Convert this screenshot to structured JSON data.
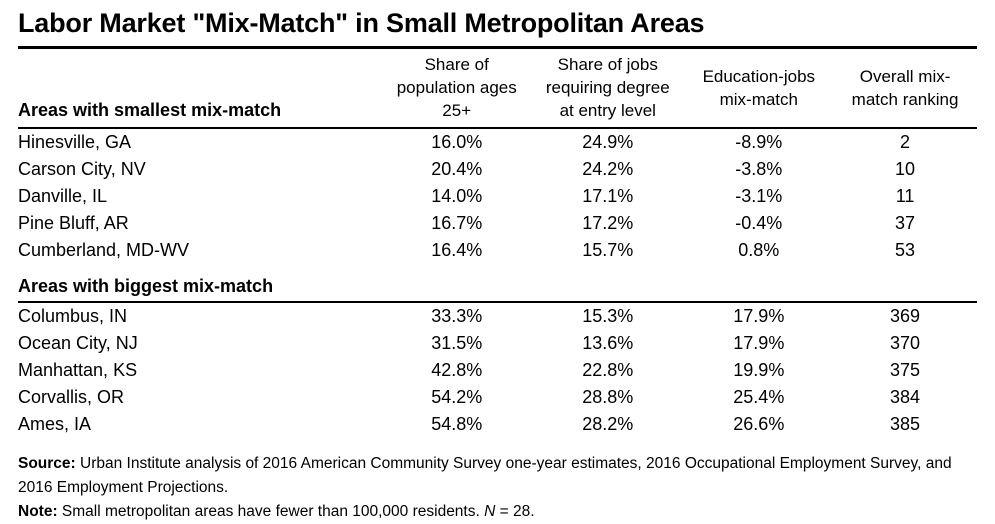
{
  "title": "Labor Market \"Mix-Match\" in Small Metropolitan Areas",
  "table": {
    "column_headers": [
      "Share of\npopulation ages\n25+",
      "Share of jobs\nrequiring degree\nat entry level",
      "Education-jobs\nmix-match",
      "Overall mix-\nmatch ranking"
    ],
    "sections": [
      {
        "label": "Areas with smallest mix-match",
        "rows": [
          {
            "area": "Hinesville, GA",
            "pop_share": "16.0%",
            "jobs_share": "24.9%",
            "mix_match": "-8.9%",
            "ranking": "2"
          },
          {
            "area": "Carson City, NV",
            "pop_share": "20.4%",
            "jobs_share": "24.2%",
            "mix_match": "-3.8%",
            "ranking": "10"
          },
          {
            "area": "Danville, IL",
            "pop_share": "14.0%",
            "jobs_share": "17.1%",
            "mix_match": "-3.1%",
            "ranking": "11"
          },
          {
            "area": "Pine Bluff, AR",
            "pop_share": "16.7%",
            "jobs_share": "17.2%",
            "mix_match": "-0.4%",
            "ranking": "37"
          },
          {
            "area": "Cumberland, MD-WV",
            "pop_share": "16.4%",
            "jobs_share": "15.7%",
            "mix_match": "0.8%",
            "ranking": "53"
          }
        ]
      },
      {
        "label": "Areas with biggest mix-match",
        "rows": [
          {
            "area": "Columbus, IN",
            "pop_share": "33.3%",
            "jobs_share": "15.3%",
            "mix_match": "17.9%",
            "ranking": "369"
          },
          {
            "area": "Ocean City, NJ",
            "pop_share": "31.5%",
            "jobs_share": "13.6%",
            "mix_match": "17.9%",
            "ranking": "370"
          },
          {
            "area": "Manhattan, KS",
            "pop_share": "42.8%",
            "jobs_share": "22.8%",
            "mix_match": "19.9%",
            "ranking": "375"
          },
          {
            "area": "Corvallis, OR",
            "pop_share": "54.2%",
            "jobs_share": "28.8%",
            "mix_match": "25.4%",
            "ranking": "384"
          },
          {
            "area": "Ames, IA",
            "pop_share": "54.8%",
            "jobs_share": "28.2%",
            "mix_match": "26.6%",
            "ranking": "385"
          }
        ]
      }
    ]
  },
  "footer": {
    "source_label": "Source:",
    "source_text": " Urban Institute analysis of 2016 American Community Survey one-year estimates, 2016 Occupational Employment Survey, and 2016 Employment Projections.",
    "note_label": "Note:",
    "note_before_n": " Small metropolitan areas have fewer than 100,000 residents. ",
    "note_n": "N",
    "note_after_n": " = 28."
  },
  "chart_data": {
    "type": "table",
    "title": "Labor Market \"Mix-Match\" in Small Metropolitan Areas",
    "columns": [
      "Area",
      "Share of population ages 25+",
      "Share of jobs requiring degree at entry level",
      "Education-jobs mix-match",
      "Overall mix-match ranking"
    ],
    "sections": [
      {
        "label": "Areas with smallest mix-match",
        "rows": [
          [
            "Hinesville, GA",
            16.0,
            24.9,
            -8.9,
            2
          ],
          [
            "Carson City, NV",
            20.4,
            24.2,
            -3.8,
            10
          ],
          [
            "Danville, IL",
            14.0,
            17.1,
            -3.1,
            11
          ],
          [
            "Pine Bluff, AR",
            16.7,
            17.2,
            -0.4,
            37
          ],
          [
            "Cumberland, MD-WV",
            16.4,
            15.7,
            0.8,
            53
          ]
        ]
      },
      {
        "label": "Areas with biggest mix-match",
        "rows": [
          [
            "Columbus, IN",
            33.3,
            15.3,
            17.9,
            369
          ],
          [
            "Ocean City, NJ",
            31.5,
            13.6,
            17.9,
            370
          ],
          [
            "Manhattan, KS",
            42.8,
            22.8,
            19.9,
            375
          ],
          [
            "Corvallis, OR",
            54.2,
            28.8,
            25.4,
            384
          ],
          [
            "Ames, IA",
            54.8,
            28.2,
            26.6,
            385
          ]
        ]
      }
    ],
    "units": {
      "share_columns": "percent",
      "ranking": "rank out of N"
    },
    "source": "Urban Institute analysis of 2016 American Community Survey one-year estimates, 2016 Occupational Employment Survey, and 2016 Employment Projections.",
    "note": "Small metropolitan areas have fewer than 100,000 residents. N = 28."
  }
}
